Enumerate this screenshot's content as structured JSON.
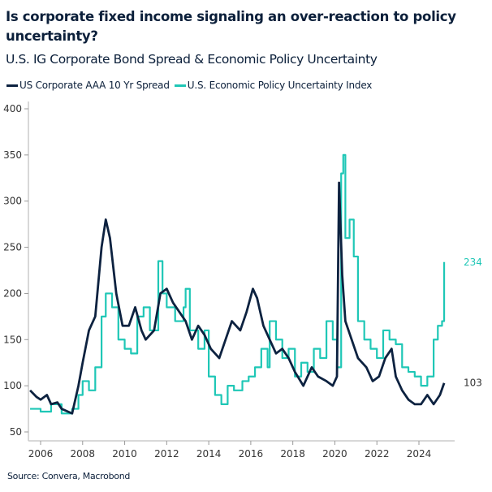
{
  "chart_data": {
    "type": "line",
    "title": "Is corporate fixed income signaling an over-reaction to policy uncertainty?",
    "subtitle": "U.S. IG Corporate Bond Spread & Economic Policy Uncertainty",
    "source": "Source: Convera, Macrobond",
    "xlim": [
      2005.42,
      2025.7
    ],
    "ylim": [
      45,
      405
    ],
    "yticks": [
      50,
      100,
      150,
      200,
      250,
      300,
      350,
      400
    ],
    "xticks": [
      2006,
      2008,
      2010,
      2012,
      2014,
      2016,
      2018,
      2020,
      2022,
      2024
    ],
    "grid": false,
    "legend_position": "top-left",
    "series": [
      {
        "name": "US Corporate AAA 10 Yr Spread",
        "color": "#0d2240",
        "end_label": "103",
        "step": false,
        "points": [
          [
            2005.5,
            95
          ],
          [
            2005.8,
            88
          ],
          [
            2006,
            85
          ],
          [
            2006.3,
            90
          ],
          [
            2006.5,
            80
          ],
          [
            2006.8,
            82
          ],
          [
            2007,
            75
          ],
          [
            2007.3,
            72
          ],
          [
            2007.5,
            70
          ],
          [
            2007.8,
            100
          ],
          [
            2008,
            125
          ],
          [
            2008.3,
            160
          ],
          [
            2008.6,
            175
          ],
          [
            2008.9,
            250
          ],
          [
            2009.1,
            280
          ],
          [
            2009.3,
            260
          ],
          [
            2009.6,
            200
          ],
          [
            2009.9,
            165
          ],
          [
            2010.2,
            165
          ],
          [
            2010.5,
            185
          ],
          [
            2010.8,
            160
          ],
          [
            2011,
            150
          ],
          [
            2011.4,
            160
          ],
          [
            2011.7,
            200
          ],
          [
            2012,
            205
          ],
          [
            2012.3,
            190
          ],
          [
            2012.6,
            180
          ],
          [
            2012.9,
            170
          ],
          [
            2013.2,
            150
          ],
          [
            2013.5,
            165
          ],
          [
            2013.8,
            155
          ],
          [
            2014.1,
            140
          ],
          [
            2014.5,
            130
          ],
          [
            2014.8,
            150
          ],
          [
            2015.1,
            170
          ],
          [
            2015.5,
            160
          ],
          [
            2015.8,
            180
          ],
          [
            2016.1,
            205
          ],
          [
            2016.3,
            195
          ],
          [
            2016.6,
            165
          ],
          [
            2016.9,
            150
          ],
          [
            2017.2,
            135
          ],
          [
            2017.5,
            140
          ],
          [
            2017.8,
            130
          ],
          [
            2018.1,
            115
          ],
          [
            2018.5,
            100
          ],
          [
            2018.9,
            120
          ],
          [
            2019.2,
            110
          ],
          [
            2019.6,
            105
          ],
          [
            2019.9,
            100
          ],
          [
            2020.1,
            110
          ],
          [
            2020.2,
            320
          ],
          [
            2020.35,
            220
          ],
          [
            2020.5,
            170
          ],
          [
            2020.8,
            150
          ],
          [
            2021.1,
            130
          ],
          [
            2021.5,
            120
          ],
          [
            2021.8,
            105
          ],
          [
            2022.1,
            110
          ],
          [
            2022.4,
            130
          ],
          [
            2022.7,
            140
          ],
          [
            2022.9,
            110
          ],
          [
            2023.2,
            95
          ],
          [
            2023.5,
            85
          ],
          [
            2023.8,
            80
          ],
          [
            2024.1,
            80
          ],
          [
            2024.4,
            90
          ],
          [
            2024.7,
            80
          ],
          [
            2025,
            90
          ],
          [
            2025.2,
            103
          ]
        ]
      },
      {
        "name": "U.S. Economic Policy Uncertainty Index",
        "color": "#1fc7b6",
        "end_label": "234",
        "step": true,
        "points": [
          [
            2005.5,
            75
          ],
          [
            2006,
            72
          ],
          [
            2006.5,
            80
          ],
          [
            2007,
            70
          ],
          [
            2007.5,
            75
          ],
          [
            2007.8,
            90
          ],
          [
            2008,
            105
          ],
          [
            2008.3,
            95
          ],
          [
            2008.6,
            120
          ],
          [
            2008.9,
            175
          ],
          [
            2009.1,
            200
          ],
          [
            2009.4,
            185
          ],
          [
            2009.7,
            150
          ],
          [
            2010,
            140
          ],
          [
            2010.3,
            135
          ],
          [
            2010.6,
            175
          ],
          [
            2010.9,
            185
          ],
          [
            2011.2,
            160
          ],
          [
            2011.6,
            235
          ],
          [
            2011.8,
            200
          ],
          [
            2012,
            185
          ],
          [
            2012.4,
            170
          ],
          [
            2012.8,
            185
          ],
          [
            2012.9,
            205
          ],
          [
            2013.1,
            160
          ],
          [
            2013.5,
            140
          ],
          [
            2013.8,
            160
          ],
          [
            2014,
            110
          ],
          [
            2014.3,
            90
          ],
          [
            2014.6,
            80
          ],
          [
            2014.9,
            100
          ],
          [
            2015.2,
            95
          ],
          [
            2015.6,
            105
          ],
          [
            2015.9,
            110
          ],
          [
            2016.2,
            120
          ],
          [
            2016.5,
            140
          ],
          [
            2016.8,
            120
          ],
          [
            2016.9,
            170
          ],
          [
            2017.2,
            150
          ],
          [
            2017.5,
            130
          ],
          [
            2017.8,
            140
          ],
          [
            2018.1,
            110
          ],
          [
            2018.4,
            125
          ],
          [
            2018.7,
            115
          ],
          [
            2019,
            140
          ],
          [
            2019.3,
            130
          ],
          [
            2019.6,
            170
          ],
          [
            2019.9,
            150
          ],
          [
            2020.1,
            120
          ],
          [
            2020.3,
            330
          ],
          [
            2020.4,
            350
          ],
          [
            2020.5,
            260
          ],
          [
            2020.7,
            280
          ],
          [
            2020.9,
            240
          ],
          [
            2021.1,
            170
          ],
          [
            2021.4,
            150
          ],
          [
            2021.7,
            140
          ],
          [
            2022,
            130
          ],
          [
            2022.3,
            160
          ],
          [
            2022.6,
            150
          ],
          [
            2022.9,
            145
          ],
          [
            2023.2,
            120
          ],
          [
            2023.5,
            115
          ],
          [
            2023.8,
            110
          ],
          [
            2024.1,
            100
          ],
          [
            2024.4,
            110
          ],
          [
            2024.7,
            150
          ],
          [
            2024.9,
            165
          ],
          [
            2025.1,
            170
          ],
          [
            2025.2,
            234
          ]
        ]
      }
    ]
  }
}
